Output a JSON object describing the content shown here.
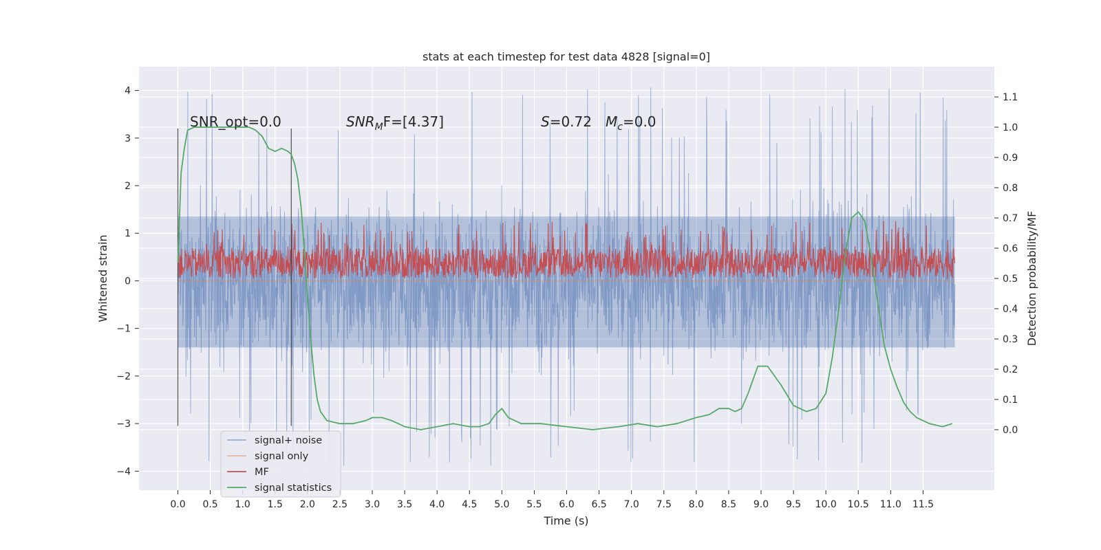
{
  "chart_data": {
    "type": "line",
    "title": "stats at each timestep for test data 4828 [signal=0]",
    "xlabel": "Time (s)",
    "ylabel": "Whitened strain",
    "ylabel_right": "Detection probability/MF",
    "xlim": [
      -0.6,
      12.6
    ],
    "ylim": [
      -4.4,
      4.5
    ],
    "ylim_right": [
      -0.2,
      1.2
    ],
    "x_ticks": [
      "0.0",
      "0.5",
      "1.0",
      "1.5",
      "2.0",
      "2.5",
      "3.0",
      "3.5",
      "4.0",
      "4.5",
      "5.0",
      "5.5",
      "6.0",
      "6.5",
      "7.0",
      "7.5",
      "8.0",
      "8.5",
      "9.0",
      "9.5",
      "10.0",
      "10.5",
      "11.0",
      "11.5"
    ],
    "y_ticks": [
      "−4",
      "−3",
      "−2",
      "−1",
      "0",
      "1",
      "2",
      "3",
      "4"
    ],
    "y_ticks_right": [
      "0.0",
      "0.1",
      "0.2",
      "0.3",
      "0.4",
      "0.5",
      "0.6",
      "0.7",
      "0.8",
      "0.9",
      "1.0",
      "1.1"
    ],
    "grid": true,
    "legend_position": "lower-left",
    "colors": {
      "signal_noise": "#4c72b0",
      "signal_only": "#dd8452",
      "mf": "#c44e52",
      "signal_statistics": "#55a868",
      "background": "#eaeaf2"
    },
    "annotations": {
      "snr_opt": "SNR_opt=0.0",
      "snr_mf_prefix": "SNR",
      "snr_mf_sub": "M",
      "snr_mf_tail": "F=[4.37]",
      "s_var": "S",
      "s_val": "=0.72",
      "mc_var": "M",
      "mc_sub": "c",
      "mc_val": "=0.0"
    },
    "vertical_lines_x": [
      0.0,
      1.75
    ],
    "series": [
      {
        "name": "signal+ noise",
        "axis": "left",
        "description_x_range": [
          0.0,
          11.99
        ],
        "envelope": {
          "typical_low": -1.4,
          "typical_high": 1.35,
          "peak_low": -3.9,
          "peak_high": 4.1
        }
      },
      {
        "name": "signal only",
        "axis": "left",
        "x": [
          0.0,
          11.99
        ],
        "y": [
          0.0,
          0.0
        ]
      },
      {
        "name": "MF",
        "axis": "right",
        "description_x_range": [
          0.0,
          11.99
        ],
        "envelope": {
          "typical_low": 0.5,
          "typical_high": 0.6,
          "peak_high": 0.69
        }
      },
      {
        "name": "signal statistics",
        "axis": "right",
        "x": [
          0.0,
          0.05,
          0.1,
          0.15,
          0.25,
          0.35,
          0.5,
          0.7,
          0.9,
          1.1,
          1.2,
          1.3,
          1.4,
          1.5,
          1.6,
          1.7,
          1.75,
          1.8,
          1.85,
          1.9,
          1.95,
          2.0,
          2.05,
          2.1,
          2.15,
          2.2,
          2.3,
          2.5,
          2.7,
          2.9,
          3.0,
          3.15,
          3.3,
          3.5,
          3.75,
          4.0,
          4.25,
          4.5,
          4.65,
          4.8,
          4.9,
          5.0,
          5.1,
          5.3,
          5.6,
          6.0,
          6.4,
          6.8,
          7.1,
          7.4,
          7.7,
          8.0,
          8.2,
          8.35,
          8.5,
          8.6,
          8.7,
          8.8,
          8.95,
          9.1,
          9.3,
          9.5,
          9.7,
          9.85,
          10.0,
          10.1,
          10.2,
          10.3,
          10.4,
          10.5,
          10.6,
          10.7,
          10.8,
          10.9,
          11.0,
          11.1,
          11.2,
          11.3,
          11.4,
          11.5,
          11.6,
          11.8,
          11.95
        ],
        "y": [
          0.55,
          0.85,
          0.93,
          0.99,
          1.0,
          1.0,
          1.0,
          1.0,
          1.0,
          1.0,
          0.99,
          0.97,
          0.93,
          0.92,
          0.93,
          0.92,
          0.91,
          0.88,
          0.83,
          0.74,
          0.6,
          0.44,
          0.3,
          0.18,
          0.1,
          0.06,
          0.03,
          0.02,
          0.02,
          0.03,
          0.04,
          0.04,
          0.03,
          0.01,
          0.0,
          0.01,
          0.02,
          0.01,
          0.01,
          0.02,
          0.05,
          0.07,
          0.04,
          0.02,
          0.02,
          0.01,
          0.0,
          0.01,
          0.02,
          0.01,
          0.02,
          0.04,
          0.05,
          0.07,
          0.07,
          0.06,
          0.07,
          0.12,
          0.21,
          0.21,
          0.15,
          0.08,
          0.06,
          0.07,
          0.12,
          0.24,
          0.4,
          0.58,
          0.7,
          0.72,
          0.69,
          0.57,
          0.42,
          0.28,
          0.2,
          0.14,
          0.09,
          0.06,
          0.04,
          0.03,
          0.02,
          0.01,
          0.02
        ]
      }
    ]
  }
}
